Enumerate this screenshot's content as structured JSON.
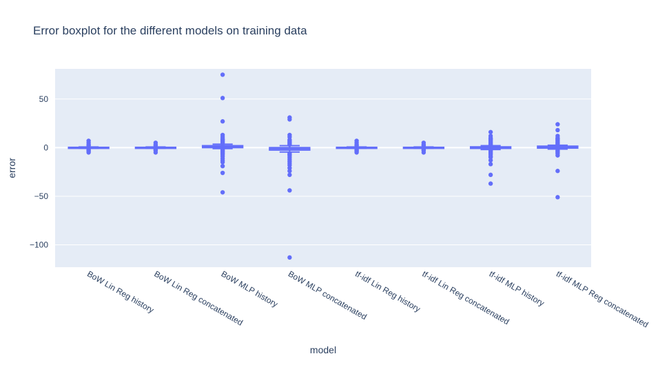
{
  "chart_data": {
    "type": "box",
    "title": "Error boxplot for the different models on training data",
    "xlabel": "model",
    "ylabel": "error",
    "ylim": [
      -123,
      81
    ],
    "yticks": [
      50,
      0,
      -50,
      -100
    ],
    "ytick_labels": [
      "50",
      "0",
      "−50",
      "−100"
    ],
    "grid": true,
    "legend": "none",
    "colors": {
      "series": "#636efa",
      "plot_bg": "#e5ecf6",
      "grid": "#ffffff",
      "text": "#2a3f5f"
    },
    "categories": [
      "BoW Lin Reg history",
      "BoW Lin Reg concatenated",
      "BoW MLP history",
      "BoW MLP concatenated",
      "tf-idf Lin Reg history",
      "tf-idf Lin Reg concatenated",
      "tf-idf MLP history",
      "tf-idf MLP Reg concatenated"
    ],
    "boxes": [
      {
        "category": "BoW Lin Reg history",
        "q1": -0.3,
        "median": 0,
        "q3": 0.3,
        "lower_fence": -0.7,
        "upper_fence": 0.7,
        "outliers": [
          7,
          5,
          3,
          2,
          -2,
          -3,
          -4,
          -5
        ]
      },
      {
        "category": "BoW Lin Reg concatenated",
        "q1": -0.3,
        "median": 0,
        "q3": 0.3,
        "lower_fence": -0.7,
        "upper_fence": 0.7,
        "outliers": [
          5,
          3,
          2,
          -2,
          -3,
          -5
        ]
      },
      {
        "category": "BoW MLP history",
        "q1": 0,
        "median": 1,
        "q3": 2,
        "lower_fence": -1,
        "upper_fence": 3.5,
        "outliers": [
          75,
          51,
          27,
          13,
          11,
          9,
          8,
          7,
          6,
          5,
          4,
          -2,
          -3,
          -4,
          -5,
          -6,
          -7,
          -9,
          -11,
          -13,
          -15,
          -19,
          -26,
          -46
        ]
      },
      {
        "category": "BoW MLP concatenated",
        "q1": -2.5,
        "median": -1,
        "q3": 0,
        "lower_fence": -4.5,
        "upper_fence": 2,
        "outliers": [
          31,
          29,
          13,
          11,
          8,
          7,
          6,
          5,
          4,
          3,
          -6,
          -7,
          -8,
          -10,
          -12,
          -14,
          -16,
          -18,
          -21,
          -24,
          -28,
          -44,
          -113
        ]
      },
      {
        "category": "tf-idf Lin Reg history",
        "q1": -0.3,
        "median": 0,
        "q3": 0.3,
        "lower_fence": -0.7,
        "upper_fence": 0.7,
        "outliers": [
          7,
          5,
          3,
          2,
          -2,
          -3,
          -4,
          -5
        ]
      },
      {
        "category": "tf-idf Lin Reg concatenated",
        "q1": -0.3,
        "median": 0,
        "q3": 0.3,
        "lower_fence": -0.7,
        "upper_fence": 0.7,
        "outliers": [
          5,
          3,
          2,
          -2,
          -3,
          -5
        ]
      },
      {
        "category": "tf-idf MLP history",
        "q1": -0.8,
        "median": 0,
        "q3": 0.8,
        "lower_fence": -2,
        "upper_fence": 2,
        "outliers": [
          16,
          12,
          10,
          9,
          8,
          7,
          6,
          5,
          4,
          3,
          -3,
          -4,
          -5,
          -6,
          -7,
          -9,
          -10,
          -13,
          -17,
          -28,
          -37
        ]
      },
      {
        "category": "tf-idf MLP Reg concatenated",
        "q1": -0.5,
        "median": 0.5,
        "q3": 1.5,
        "lower_fence": -1.5,
        "upper_fence": 2.5,
        "outliers": [
          24,
          18,
          12,
          10,
          9,
          8,
          7,
          6,
          5,
          4,
          3,
          -3,
          -4,
          -5,
          -6,
          -8,
          -24,
          -51
        ]
      }
    ]
  }
}
